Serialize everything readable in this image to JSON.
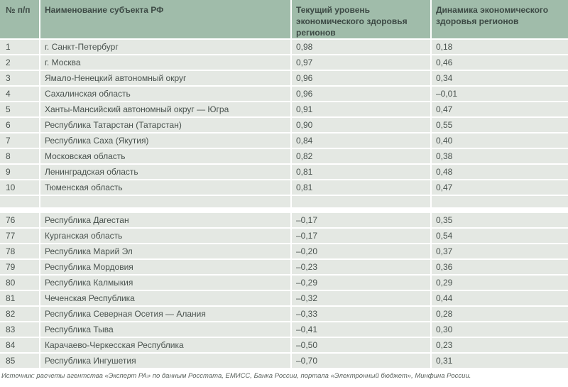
{
  "colors": {
    "header_bg": "#a0bcaa",
    "header_text": "#3d4a45",
    "row_bg": "#e4e8e3",
    "row_text": "#4a534f",
    "separator": "#ffffff",
    "source_text": "#5a625d"
  },
  "table": {
    "headers": [
      "№ п/п",
      "Наименование субъекта РФ",
      "Текущий уровень экономического здоровья регионов",
      "Динамика экономического здоровья регионов"
    ],
    "top_rows": [
      {
        "num": "1",
        "name": "г. Санкт-Петербург",
        "current": "0,98",
        "dynamics": "0,18"
      },
      {
        "num": "2",
        "name": "г. Москва",
        "current": "0,97",
        "dynamics": "0,46"
      },
      {
        "num": "3",
        "name": "Ямало-Ненецкий автономный округ",
        "current": "0,96",
        "dynamics": "0,34"
      },
      {
        "num": "4",
        "name": "Сахалинская область",
        "current": "0,96",
        "dynamics": "–0,01"
      },
      {
        "num": "5",
        "name": "Ханты-Мансийский автономный округ — Югра",
        "current": "0,91",
        "dynamics": "0,47"
      },
      {
        "num": "6",
        "name": "Республика Татарстан (Татарстан)",
        "current": "0,90",
        "dynamics": "0,55"
      },
      {
        "num": "7",
        "name": "Республика Саха (Якутия)",
        "current": "0,84",
        "dynamics": "0,40"
      },
      {
        "num": "8",
        "name": "Московская область",
        "current": "0,82",
        "dynamics": "0,38"
      },
      {
        "num": "9",
        "name": "Ленинградская область",
        "current": "0,81",
        "dynamics": "0,48"
      },
      {
        "num": "10",
        "name": "Тюменская область",
        "current": "0,81",
        "dynamics": "0,47"
      }
    ],
    "bottom_rows": [
      {
        "num": "76",
        "name": "Республика Дагестан",
        "current": "–0,17",
        "dynamics": "0,35"
      },
      {
        "num": "77",
        "name": "Курганская область",
        "current": "–0,17",
        "dynamics": "0,54"
      },
      {
        "num": "78",
        "name": "Республика Марий Эл",
        "current": "–0,20",
        "dynamics": "0,37"
      },
      {
        "num": "79",
        "name": "Республика Мордовия",
        "current": "–0,23",
        "dynamics": "0,36"
      },
      {
        "num": "80",
        "name": "Республика Калмыкия",
        "current": "–0,29",
        "dynamics": "0,29"
      },
      {
        "num": "81",
        "name": "Чеченская Республика",
        "current": "–0,32",
        "dynamics": "0,44"
      },
      {
        "num": "82",
        "name": "Республика Северная Осетия — Алания",
        "current": "–0,33",
        "dynamics": "0,28"
      },
      {
        "num": "83",
        "name": "Республика Тыва",
        "current": "–0,41",
        "dynamics": "0,30"
      },
      {
        "num": "84",
        "name": "Карачаево-Черкесская Республика",
        "current": "–0,50",
        "dynamics": "0,23"
      },
      {
        "num": "85",
        "name": "Республика Ингушетия",
        "current": "–0,70",
        "dynamics": "0,31"
      }
    ],
    "source": "Источник: расчеты агентства «Эксперт РА» по данным Росстата, ЕМИСС, Банка России, портала «Электронный бюджет», Минфина России."
  }
}
